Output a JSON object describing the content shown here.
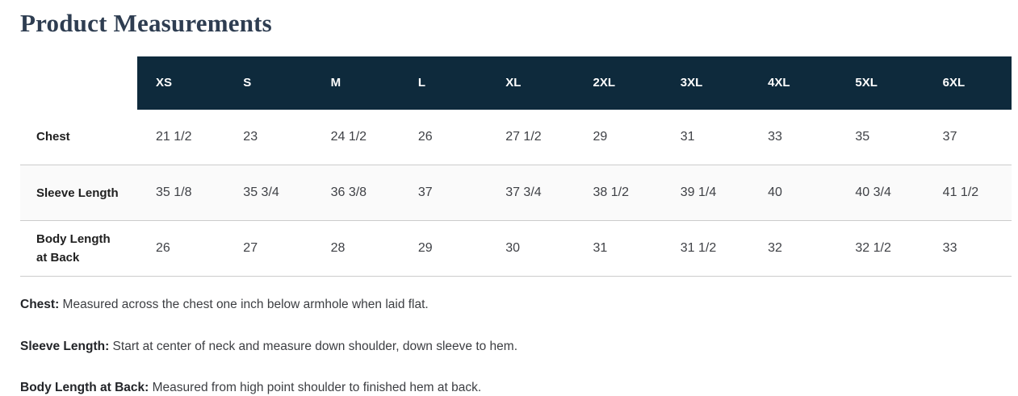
{
  "page": {
    "title": "Product Measurements"
  },
  "table": {
    "sizes": [
      "XS",
      "S",
      "M",
      "L",
      "XL",
      "2XL",
      "3XL",
      "4XL",
      "5XL",
      "6XL"
    ],
    "rows": [
      {
        "label": "Chest",
        "values": [
          "21 1/2",
          "23",
          "24 1/2",
          "26",
          "27 1/2",
          "29",
          "31",
          "33",
          "35",
          "37"
        ]
      },
      {
        "label": "Sleeve Length",
        "values": [
          "35 1/8",
          "35 3/4",
          "36 3/8",
          "37",
          "37 3/4",
          "38 1/2",
          "39 1/4",
          "40",
          "40 3/4",
          "41 1/2"
        ]
      },
      {
        "label": "Body Length at Back",
        "values": [
          "26",
          "27",
          "28",
          "29",
          "30",
          "31",
          "31 1/2",
          "32",
          "32 1/2",
          "33"
        ]
      }
    ]
  },
  "notes": [
    {
      "term": "Chest:",
      "text": "Measured across the chest one inch below armhole when laid flat."
    },
    {
      "term": "Sleeve Length:",
      "text": "Start at center of neck and measure down shoulder, down sleeve to hem."
    },
    {
      "term": "Body Length at Back:",
      "text": "Measured from high point shoulder to finished hem at back."
    }
  ],
  "colors": {
    "header_bg": "#0e2a3c",
    "header_text": "#ffffff",
    "title_color": "#2e3d51",
    "divider": "#cccccc",
    "row_alt_bg": "#fafafa",
    "body_text": "#3f4146"
  }
}
